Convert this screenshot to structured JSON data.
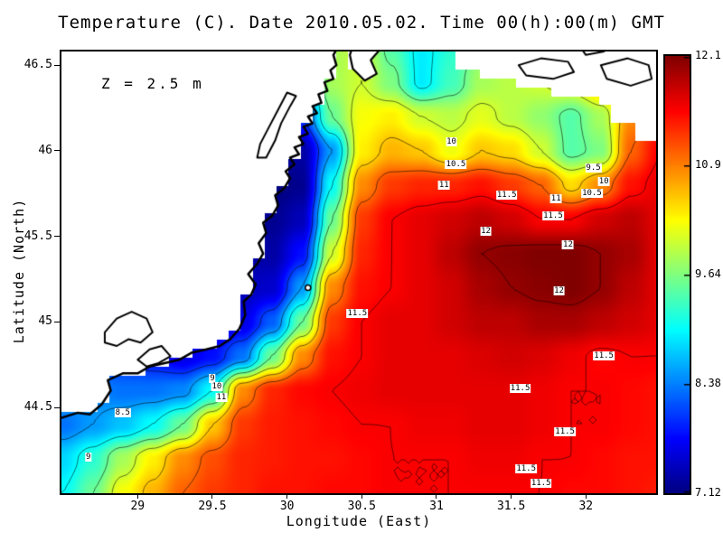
{
  "chart_data": {
    "type": "heatmap",
    "subtype": "filled-contour-map",
    "title": "Temperature (C). Date 2010.05.02. Time 00(h):00(m) GMT",
    "annotation": "Z = 2.5 m",
    "xlabel": "Longitude (East)",
    "ylabel": "Latitude (North)",
    "units": "C",
    "x_range": [
      28.49,
      32.47
    ],
    "y_range": [
      44.0,
      46.58
    ],
    "value_range": [
      7.12,
      12.1
    ],
    "xticks": [
      29,
      29.5,
      30,
      30.5,
      31,
      31.5,
      32
    ],
    "xtick_labels": [
      "29",
      "29.5",
      "30",
      "30.5",
      "31",
      "31.5",
      "32"
    ],
    "yticks": [
      44.5,
      45,
      45.5,
      46,
      46.5
    ],
    "ytick_labels": [
      "44.5",
      "45",
      "45.5",
      "46",
      "46.5"
    ],
    "colorbar": {
      "min": 7.12,
      "max": 12.1,
      "labels": [
        "12.1",
        "10.9",
        "9.64",
        "8.38",
        "7.12"
      ],
      "colormap": "jet"
    },
    "contour_levels": [
      8,
      8.5,
      9,
      9.5,
      10,
      10.5,
      11,
      11.5,
      12
    ],
    "grid": {
      "lon0": 28.5,
      "dlon": 0.2,
      "nlon": 21,
      "lat_top": 46.6,
      "dlat": 0.2,
      "nlat": 14,
      "values": [
        [
          8.0,
          8.0,
          8.0,
          8.0,
          8.0,
          8.0,
          8.0,
          8.0,
          8.0,
          9.8,
          10.0,
          9.4,
          8.9,
          9.2,
          9.6,
          9.8,
          10.0,
          10.3,
          10.6,
          10.8,
          11.0
        ],
        [
          8.0,
          8.0,
          8.0,
          8.0,
          8.0,
          8.0,
          8.0,
          8.0,
          8.5,
          9.8,
          10.0,
          9.6,
          8.9,
          9.3,
          9.8,
          9.9,
          10.0,
          10.2,
          10.6,
          11.0,
          11.2
        ],
        [
          8.0,
          8.0,
          8.0,
          8.0,
          8.0,
          8.0,
          8.0,
          7.5,
          8.0,
          9.5,
          10.2,
          10.3,
          10.0,
          9.9,
          10.1,
          9.9,
          9.7,
          9.4,
          9.8,
          10.8,
          11.3
        ],
        [
          8.0,
          8.0,
          8.0,
          8.0,
          8.0,
          8.0,
          7.5,
          7.2,
          7.3,
          8.5,
          10.3,
          10.6,
          10.5,
          10.15,
          10.5,
          10.4,
          10.0,
          9.4,
          9.6,
          11.0,
          11.5
        ],
        [
          8.0,
          8.0,
          8.0,
          8.0,
          8.0,
          7.8,
          7.3,
          7.1,
          7.2,
          9.0,
          10.8,
          11.2,
          11.3,
          11.3,
          11.4,
          11.2,
          11.0,
          10.4,
          10.8,
          11.4,
          11.6
        ],
        [
          8.0,
          8.0,
          8.0,
          8.0,
          8.0,
          7.9,
          7.4,
          7.2,
          7.4,
          9.5,
          11.2,
          11.5,
          11.6,
          11.7,
          11.8,
          11.7,
          11.5,
          11.5,
          11.7,
          11.8,
          11.6
        ],
        [
          8.0,
          8.0,
          8.0,
          8.0,
          7.9,
          7.6,
          7.3,
          7.3,
          7.8,
          10.0,
          11.3,
          11.5,
          11.6,
          11.8,
          12.0,
          12.05,
          12.1,
          12.1,
          12.0,
          11.9,
          11.6
        ],
        [
          8.0,
          8.0,
          8.0,
          8.0,
          7.8,
          7.5,
          7.4,
          7.5,
          8.5,
          10.8,
          11.4,
          11.5,
          11.6,
          11.7,
          11.9,
          12.0,
          12.05,
          12.1,
          12.0,
          11.8,
          11.6
        ],
        [
          8.0,
          8.0,
          8.0,
          7.9,
          7.7,
          7.5,
          7.6,
          8.2,
          9.5,
          11.2,
          11.5,
          11.6,
          11.6,
          11.7,
          11.8,
          11.8,
          11.9,
          11.9,
          11.8,
          11.7,
          11.6
        ],
        [
          8.0,
          8.0,
          7.9,
          7.8,
          7.6,
          7.8,
          8.3,
          9.5,
          10.8,
          11.4,
          11.5,
          11.6,
          11.6,
          11.6,
          11.65,
          11.7,
          11.65,
          11.55,
          11.45,
          11.5,
          11.5
        ],
        [
          8.6,
          8.4,
          8.3,
          8.3,
          8.4,
          9.0,
          10.8,
          11.3,
          11.45,
          11.5,
          11.55,
          11.6,
          11.6,
          11.6,
          11.6,
          11.6,
          11.55,
          11.5,
          11.5,
          11.45,
          11.4
        ],
        [
          8.3,
          8.5,
          8.7,
          9.0,
          9.5,
          10.5,
          11.2,
          11.35,
          11.4,
          11.45,
          11.5,
          11.5,
          11.55,
          11.55,
          11.6,
          11.6,
          11.55,
          11.5,
          11.5,
          11.45,
          11.4
        ],
        [
          8.8,
          9.2,
          9.8,
          10.3,
          10.8,
          11.1,
          11.3,
          11.35,
          11.4,
          11.4,
          11.45,
          11.5,
          11.5,
          11.5,
          11.55,
          11.55,
          11.5,
          11.5,
          11.45,
          11.4,
          11.4
        ],
        [
          9.0,
          9.5,
          10.2,
          10.6,
          11.0,
          11.2,
          11.3,
          11.4,
          11.4,
          11.45,
          11.45,
          11.5,
          11.5,
          11.5,
          11.5,
          11.5,
          11.5,
          11.45,
          11.45,
          11.4,
          11.35
        ]
      ]
    },
    "mask_cell": [
      0.08,
      0.0527
    ],
    "land_polygons": [
      [
        [
          28.49,
          44.44
        ],
        [
          28.6,
          44.47
        ],
        [
          28.68,
          44.46
        ],
        [
          28.76,
          44.52
        ],
        [
          28.82,
          44.6
        ],
        [
          28.8,
          44.66
        ],
        [
          28.9,
          44.7
        ],
        [
          29.0,
          44.7
        ],
        [
          29.08,
          44.74
        ],
        [
          29.18,
          44.76
        ],
        [
          29.28,
          44.78
        ],
        [
          29.36,
          44.82
        ],
        [
          29.46,
          44.84
        ],
        [
          29.55,
          44.86
        ],
        [
          29.62,
          44.9
        ],
        [
          29.68,
          44.96
        ],
        [
          29.72,
          45.04
        ],
        [
          29.71,
          45.12
        ],
        [
          29.76,
          45.16
        ],
        [
          29.79,
          45.22
        ],
        [
          29.74,
          45.28
        ],
        [
          29.8,
          45.34
        ],
        [
          29.84,
          45.4
        ],
        [
          29.81,
          45.46
        ],
        [
          29.86,
          45.52
        ],
        [
          29.84,
          45.58
        ],
        [
          29.9,
          45.62
        ],
        [
          29.94,
          45.68
        ],
        [
          29.92,
          45.74
        ],
        [
          29.98,
          45.78
        ],
        [
          30.02,
          45.84
        ],
        [
          29.99,
          45.88
        ],
        [
          30.05,
          45.92
        ],
        [
          30.02,
          45.96
        ],
        [
          30.08,
          45.98
        ],
        [
          30.05,
          46.02
        ],
        [
          30.11,
          46.04
        ],
        [
          30.08,
          46.08
        ],
        [
          30.14,
          46.1
        ],
        [
          30.11,
          46.14
        ],
        [
          30.17,
          46.16
        ],
        [
          30.14,
          46.2
        ],
        [
          30.2,
          46.22
        ],
        [
          30.17,
          46.26
        ],
        [
          30.23,
          46.28
        ],
        [
          30.21,
          46.33
        ],
        [
          30.27,
          46.35
        ],
        [
          30.25,
          46.4
        ],
        [
          30.31,
          46.42
        ],
        [
          30.29,
          46.47
        ],
        [
          30.33,
          46.5
        ],
        [
          30.31,
          46.56
        ],
        [
          30.35,
          46.62
        ],
        [
          30.35,
          46.7
        ],
        [
          28.3,
          46.7
        ],
        [
          28.3,
          44.44
        ]
      ],
      [
        [
          30.46,
          46.66
        ],
        [
          30.42,
          46.56
        ],
        [
          30.44,
          46.48
        ],
        [
          30.52,
          46.41
        ],
        [
          30.6,
          46.45
        ],
        [
          30.56,
          46.53
        ],
        [
          30.62,
          46.59
        ],
        [
          30.62,
          46.66
        ]
      ],
      [
        [
          31.12,
          46.66
        ],
        [
          31.12,
          46.5
        ],
        [
          31.3,
          46.5
        ],
        [
          31.3,
          46.43
        ],
        [
          31.52,
          46.43
        ],
        [
          31.52,
          46.36
        ],
        [
          31.78,
          46.36
        ],
        [
          31.78,
          46.3
        ],
        [
          32.05,
          46.3
        ],
        [
          32.05,
          46.24
        ],
        [
          32.18,
          46.24
        ],
        [
          32.18,
          46.16
        ],
        [
          32.32,
          46.16
        ],
        [
          32.32,
          46.06
        ],
        [
          32.5,
          46.06
        ],
        [
          32.5,
          46.66
        ]
      ]
    ],
    "stroke_paths": [
      {
        "name": "coastline-main",
        "lw": 2.5,
        "closed": false,
        "fill": false,
        "pts": [
          [
            28.49,
            44.44
          ],
          [
            28.6,
            44.47
          ],
          [
            28.68,
            44.46
          ],
          [
            28.76,
            44.52
          ],
          [
            28.82,
            44.6
          ],
          [
            28.8,
            44.66
          ],
          [
            28.9,
            44.7
          ],
          [
            29.0,
            44.7
          ],
          [
            29.08,
            44.74
          ],
          [
            29.18,
            44.76
          ],
          [
            29.28,
            44.78
          ],
          [
            29.36,
            44.82
          ],
          [
            29.46,
            44.84
          ],
          [
            29.55,
            44.86
          ],
          [
            29.62,
            44.9
          ],
          [
            29.68,
            44.96
          ],
          [
            29.72,
            45.04
          ],
          [
            29.71,
            45.12
          ],
          [
            29.76,
            45.16
          ],
          [
            29.79,
            45.22
          ],
          [
            29.74,
            45.28
          ],
          [
            29.8,
            45.34
          ],
          [
            29.84,
            45.4
          ],
          [
            29.81,
            45.46
          ],
          [
            29.86,
            45.52
          ],
          [
            29.84,
            45.58
          ],
          [
            29.9,
            45.62
          ],
          [
            29.94,
            45.68
          ],
          [
            29.92,
            45.74
          ],
          [
            29.98,
            45.78
          ],
          [
            30.02,
            45.84
          ],
          [
            29.99,
            45.88
          ],
          [
            30.05,
            45.92
          ],
          [
            30.02,
            45.96
          ],
          [
            30.08,
            45.98
          ],
          [
            30.05,
            46.02
          ],
          [
            30.11,
            46.04
          ],
          [
            30.08,
            46.08
          ],
          [
            30.14,
            46.1
          ],
          [
            30.11,
            46.14
          ],
          [
            30.17,
            46.16
          ],
          [
            30.14,
            46.2
          ],
          [
            30.2,
            46.22
          ],
          [
            30.17,
            46.26
          ],
          [
            30.23,
            46.28
          ],
          [
            30.21,
            46.33
          ],
          [
            30.27,
            46.35
          ],
          [
            30.25,
            46.4
          ],
          [
            30.31,
            46.42
          ],
          [
            30.29,
            46.47
          ],
          [
            30.33,
            46.5
          ],
          [
            30.31,
            46.56
          ],
          [
            30.35,
            46.62
          ]
        ]
      },
      {
        "name": "peninsula",
        "lw": 2.2,
        "closed": true,
        "fill": true,
        "pts": [
          [
            30.46,
            46.66
          ],
          [
            30.42,
            46.56
          ],
          [
            30.44,
            46.48
          ],
          [
            30.52,
            46.41
          ],
          [
            30.6,
            46.45
          ],
          [
            30.56,
            46.53
          ],
          [
            30.62,
            46.59
          ],
          [
            30.62,
            46.66
          ]
        ]
      },
      {
        "name": "lake-razim",
        "lw": 2,
        "closed": true,
        "fill": true,
        "pts": [
          [
            28.78,
            44.94
          ],
          [
            28.86,
            45.02
          ],
          [
            28.96,
            45.06
          ],
          [
            29.06,
            45.02
          ],
          [
            29.1,
            44.94
          ],
          [
            29.02,
            44.88
          ],
          [
            28.94,
            44.9
          ],
          [
            28.86,
            44.86
          ],
          [
            28.78,
            44.88
          ]
        ]
      },
      {
        "name": "lake-sinoe",
        "lw": 2,
        "closed": true,
        "fill": true,
        "pts": [
          [
            29.0,
            44.78
          ],
          [
            29.08,
            44.84
          ],
          [
            29.16,
            44.86
          ],
          [
            29.22,
            44.8
          ],
          [
            29.14,
            44.76
          ],
          [
            29.06,
            44.74
          ]
        ]
      },
      {
        "name": "dniester-liman",
        "lw": 2,
        "closed": true,
        "fill": true,
        "pts": [
          [
            29.86,
            45.96
          ],
          [
            29.92,
            46.06
          ],
          [
            29.96,
            46.16
          ],
          [
            30.02,
            46.26
          ],
          [
            30.06,
            46.32
          ],
          [
            30.0,
            46.34
          ],
          [
            29.94,
            46.24
          ],
          [
            29.88,
            46.14
          ],
          [
            29.82,
            46.04
          ],
          [
            29.8,
            45.96
          ]
        ]
      },
      {
        "name": "liman-shape-1",
        "lw": 2,
        "closed": true,
        "fill": true,
        "pts": [
          [
            31.55,
            46.5
          ],
          [
            31.7,
            46.54
          ],
          [
            31.88,
            46.52
          ],
          [
            31.92,
            46.46
          ],
          [
            31.78,
            46.42
          ],
          [
            31.6,
            46.44
          ]
        ]
      },
      {
        "name": "liman-shape-2",
        "lw": 2,
        "closed": true,
        "fill": true,
        "pts": [
          [
            32.1,
            46.5
          ],
          [
            32.28,
            46.54
          ],
          [
            32.42,
            46.5
          ],
          [
            32.44,
            46.42
          ],
          [
            32.3,
            46.38
          ],
          [
            32.14,
            46.42
          ]
        ]
      },
      {
        "name": "spit-line",
        "lw": 2,
        "closed": false,
        "fill": false,
        "pts": [
          [
            31.95,
            46.62
          ],
          [
            32.0,
            46.56
          ],
          [
            32.12,
            46.58
          ],
          [
            32.2,
            46.62
          ]
        ]
      }
    ],
    "island": {
      "lon": 30.14,
      "lat": 45.2
    },
    "contour_labels": [
      {
        "t": "10",
        "lon": 31.1,
        "lat": 46.05
      },
      {
        "t": "10.5",
        "lon": 31.13,
        "lat": 45.92
      },
      {
        "t": "11",
        "lon": 31.05,
        "lat": 45.8
      },
      {
        "t": "9.5",
        "lon": 32.05,
        "lat": 45.9
      },
      {
        "t": "10",
        "lon": 32.12,
        "lat": 45.82
      },
      {
        "t": "10.5",
        "lon": 32.04,
        "lat": 45.75
      },
      {
        "t": "11",
        "lon": 31.8,
        "lat": 45.72
      },
      {
        "t": "11.5",
        "lon": 31.78,
        "lat": 45.62
      },
      {
        "t": "11.5",
        "lon": 31.47,
        "lat": 45.74
      },
      {
        "t": "12",
        "lon": 31.33,
        "lat": 45.53
      },
      {
        "t": "12",
        "lon": 31.88,
        "lat": 45.45
      },
      {
        "t": "12",
        "lon": 31.82,
        "lat": 45.18
      },
      {
        "t": "11.5",
        "lon": 30.47,
        "lat": 45.05
      },
      {
        "t": "11.5",
        "lon": 32.12,
        "lat": 44.8
      },
      {
        "t": "11.5",
        "lon": 31.56,
        "lat": 44.61
      },
      {
        "t": "11.5",
        "lon": 31.86,
        "lat": 44.36
      },
      {
        "t": "11.5",
        "lon": 31.6,
        "lat": 44.14
      },
      {
        "t": "11.5",
        "lon": 31.7,
        "lat": 44.06
      },
      {
        "t": "8.5",
        "lon": 28.9,
        "lat": 44.47
      },
      {
        "t": "9",
        "lon": 28.67,
        "lat": 44.21
      },
      {
        "t": "9",
        "lon": 29.5,
        "lat": 44.67
      },
      {
        "t": "10",
        "lon": 29.53,
        "lat": 44.62
      },
      {
        "t": "11",
        "lon": 29.56,
        "lat": 44.56
      }
    ]
  }
}
